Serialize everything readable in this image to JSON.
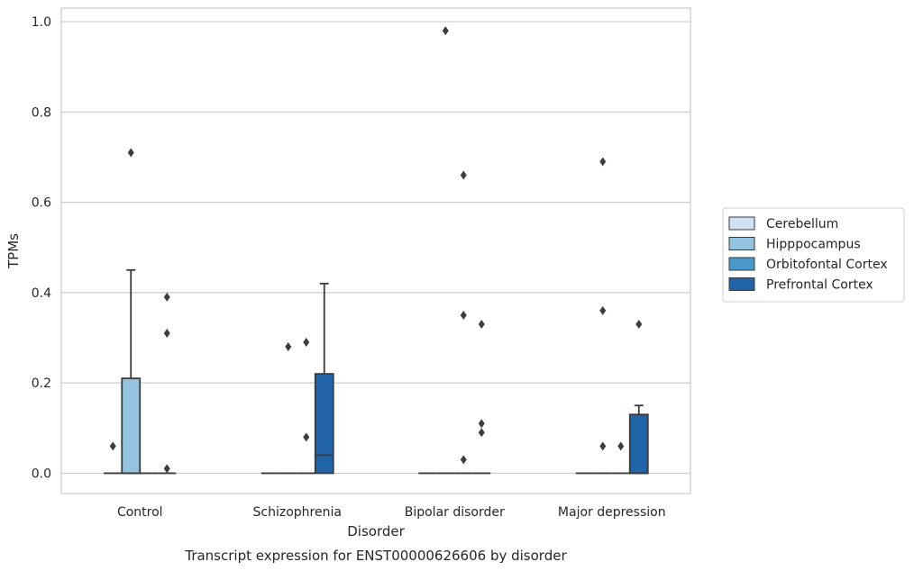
{
  "chart_data": {
    "type": "box",
    "title": "Transcript expression for ENST00000626606 by disorder",
    "xlabel": "Disorder",
    "ylabel": "TPMs",
    "categories": [
      "Control",
      "Schizophrenia",
      "Bipolar disorder",
      "Major depression"
    ],
    "ylim": [
      -0.045,
      1.03
    ],
    "yticks": [
      "0.0",
      "0.2",
      "0.4",
      "0.6",
      "0.8",
      "1.0"
    ],
    "grid": true,
    "legend_position": "right",
    "series": [
      {
        "name": "Cerebellum",
        "color": "#d0e1f2",
        "boxes": [
          {
            "category": "Control",
            "q1": 0,
            "median": 0,
            "q3": 0,
            "whisker_low": 0,
            "whisker_high": 0,
            "outliers": [
              0.06
            ]
          },
          {
            "category": "Schizophrenia",
            "q1": 0,
            "median": 0,
            "q3": 0,
            "whisker_low": 0,
            "whisker_high": 0,
            "outliers": []
          },
          {
            "category": "Bipolar disorder",
            "q1": 0,
            "median": 0,
            "q3": 0,
            "whisker_low": 0,
            "whisker_high": 0,
            "outliers": []
          },
          {
            "category": "Major depression",
            "q1": 0,
            "median": 0,
            "q3": 0,
            "whisker_low": 0,
            "whisker_high": 0,
            "outliers": []
          }
        ]
      },
      {
        "name": "Hipppocampus",
        "color": "#94c4df",
        "boxes": [
          {
            "category": "Control",
            "q1": 0,
            "median": 0,
            "q3": 0.21,
            "whisker_low": 0,
            "whisker_high": 0.45,
            "outliers": [
              0.71
            ]
          },
          {
            "category": "Schizophrenia",
            "q1": 0,
            "median": 0,
            "q3": 0,
            "whisker_low": 0,
            "whisker_high": 0,
            "outliers": [
              0.28
            ]
          },
          {
            "category": "Bipolar disorder",
            "q1": 0,
            "median": 0,
            "q3": 0,
            "whisker_low": 0,
            "whisker_high": 0,
            "outliers": [
              0.98
            ]
          },
          {
            "category": "Major depression",
            "q1": 0,
            "median": 0,
            "q3": 0,
            "whisker_low": 0,
            "whisker_high": 0,
            "outliers": [
              0.69,
              0.36,
              0.06
            ]
          }
        ]
      },
      {
        "name": "Orbitofontal Cortex",
        "color": "#4a98c9",
        "boxes": [
          {
            "category": "Control",
            "q1": 0,
            "median": 0,
            "q3": 0,
            "whisker_low": 0,
            "whisker_high": 0,
            "outliers": []
          },
          {
            "category": "Schizophrenia",
            "q1": 0,
            "median": 0,
            "q3": 0,
            "whisker_low": 0,
            "whisker_high": 0,
            "outliers": [
              0.29,
              0.08
            ]
          },
          {
            "category": "Bipolar disorder",
            "q1": 0,
            "median": 0,
            "q3": 0,
            "whisker_low": 0,
            "whisker_high": 0,
            "outliers": [
              0.66,
              0.35,
              0.03
            ]
          },
          {
            "category": "Major depression",
            "q1": 0,
            "median": 0,
            "q3": 0,
            "whisker_low": 0,
            "whisker_high": 0,
            "outliers": [
              0.06
            ]
          }
        ]
      },
      {
        "name": "Prefrontal Cortex",
        "color": "#2264a8",
        "boxes": [
          {
            "category": "Control",
            "q1": 0,
            "median": 0,
            "q3": 0,
            "whisker_low": 0,
            "whisker_high": 0,
            "outliers": [
              0.39,
              0.31,
              0.01
            ]
          },
          {
            "category": "Schizophrenia",
            "q1": 0,
            "median": 0.04,
            "q3": 0.22,
            "whisker_low": 0,
            "whisker_high": 0.42,
            "outliers": []
          },
          {
            "category": "Bipolar disorder",
            "q1": 0,
            "median": 0,
            "q3": 0,
            "whisker_low": 0,
            "whisker_high": 0,
            "outliers": [
              0.33,
              0.11,
              0.09
            ]
          },
          {
            "category": "Major depression",
            "q1": 0,
            "median": 0,
            "q3": 0.13,
            "whisker_low": 0,
            "whisker_high": 0.15,
            "outliers": [
              0.33
            ]
          }
        ]
      }
    ]
  }
}
